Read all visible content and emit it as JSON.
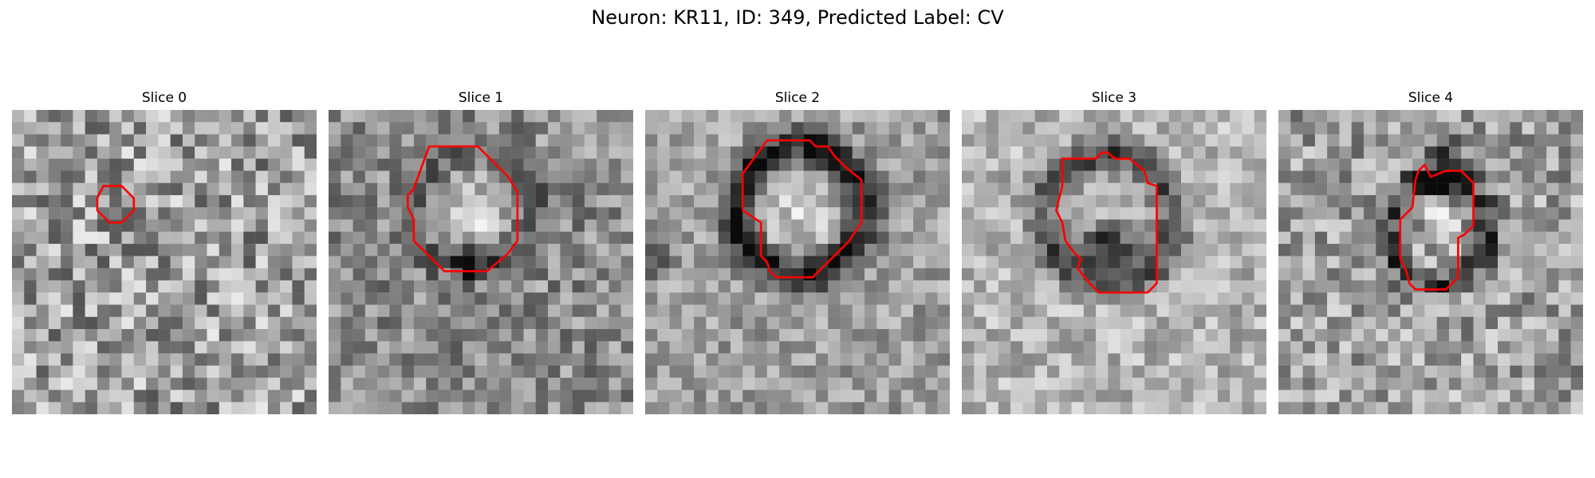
{
  "figure": {
    "title": "Neuron: KR11, ID: 349, Predicted Label: CV"
  },
  "image_panels": [
    {
      "title": "Slice 0",
      "image": "grayscale-microscopy-tile-noisy",
      "contour_color": "#ff0000",
      "contour_points": [
        [
          30,
          25
        ],
        [
          36,
          25
        ],
        [
          40,
          29
        ],
        [
          40,
          33
        ],
        [
          36,
          37
        ],
        [
          32,
          37
        ],
        [
          28,
          33
        ],
        [
          28,
          29
        ]
      ]
    },
    {
      "title": "Slice 1",
      "image": "grayscale-microscopy-tile-bright-round-cell",
      "contour_color": "#ff0000",
      "contour_points": [
        [
          33,
          12
        ],
        [
          49,
          12
        ],
        [
          59,
          22
        ],
        [
          62,
          27
        ],
        [
          62,
          43
        ],
        [
          59,
          47
        ],
        [
          58,
          48
        ],
        [
          52,
          53
        ],
        [
          38,
          53
        ],
        [
          28,
          43
        ],
        [
          28,
          36
        ],
        [
          26,
          32
        ],
        [
          26,
          28
        ],
        [
          28,
          26
        ],
        [
          29,
          23
        ]
      ]
    },
    {
      "title": "Slice 2",
      "image": "grayscale-microscopy-tile-round-cell-dark-ring",
      "contour_color": "#ff0000",
      "contour_points": [
        [
          40,
          10
        ],
        [
          54,
          10
        ],
        [
          56,
          12
        ],
        [
          60,
          12
        ],
        [
          62,
          15
        ],
        [
          64,
          17
        ],
        [
          66,
          19
        ],
        [
          71,
          23
        ],
        [
          71,
          37
        ],
        [
          67,
          43
        ],
        [
          65,
          45
        ],
        [
          55,
          55
        ],
        [
          43,
          55
        ],
        [
          41,
          53
        ],
        [
          40,
          50
        ],
        [
          38,
          48
        ],
        [
          38,
          37
        ],
        [
          35,
          35
        ],
        [
          32,
          33
        ],
        [
          32,
          21
        ]
      ]
    },
    {
      "title": "Slice 3",
      "image": "grayscale-microscopy-tile-cell-dark-lower-half",
      "contour_color": "#ff0000",
      "contour_points": [
        [
          33,
          16
        ],
        [
          44,
          16
        ],
        [
          46,
          14
        ],
        [
          48,
          14
        ],
        [
          50,
          16
        ],
        [
          55,
          16
        ],
        [
          60,
          20
        ],
        [
          61,
          24
        ],
        [
          64,
          25
        ],
        [
          64,
          57
        ],
        [
          61,
          60
        ],
        [
          45,
          60
        ],
        [
          42,
          57
        ],
        [
          38,
          52
        ],
        [
          39,
          49
        ],
        [
          37,
          47
        ],
        [
          34,
          43
        ],
        [
          33,
          37
        ],
        [
          31,
          33
        ],
        [
          33,
          25
        ]
      ]
    },
    {
      "title": "Slice 4",
      "image": "grayscale-microscopy-tile-cell-dark-ring-irregular",
      "contour_color": "#ff0000",
      "contour_points": [
        [
          55,
          20
        ],
        [
          60,
          20
        ],
        [
          64,
          24
        ],
        [
          64,
          38
        ],
        [
          61,
          41
        ],
        [
          59,
          42
        ],
        [
          59,
          55
        ],
        [
          55,
          59
        ],
        [
          45,
          59
        ],
        [
          43,
          57
        ],
        [
          42,
          53
        ],
        [
          40,
          49
        ],
        [
          40,
          36
        ],
        [
          44,
          32
        ],
        [
          45,
          23
        ],
        [
          46,
          20
        ],
        [
          48,
          18
        ],
        [
          49,
          20
        ],
        [
          50,
          22
        ]
      ]
    }
  ]
}
